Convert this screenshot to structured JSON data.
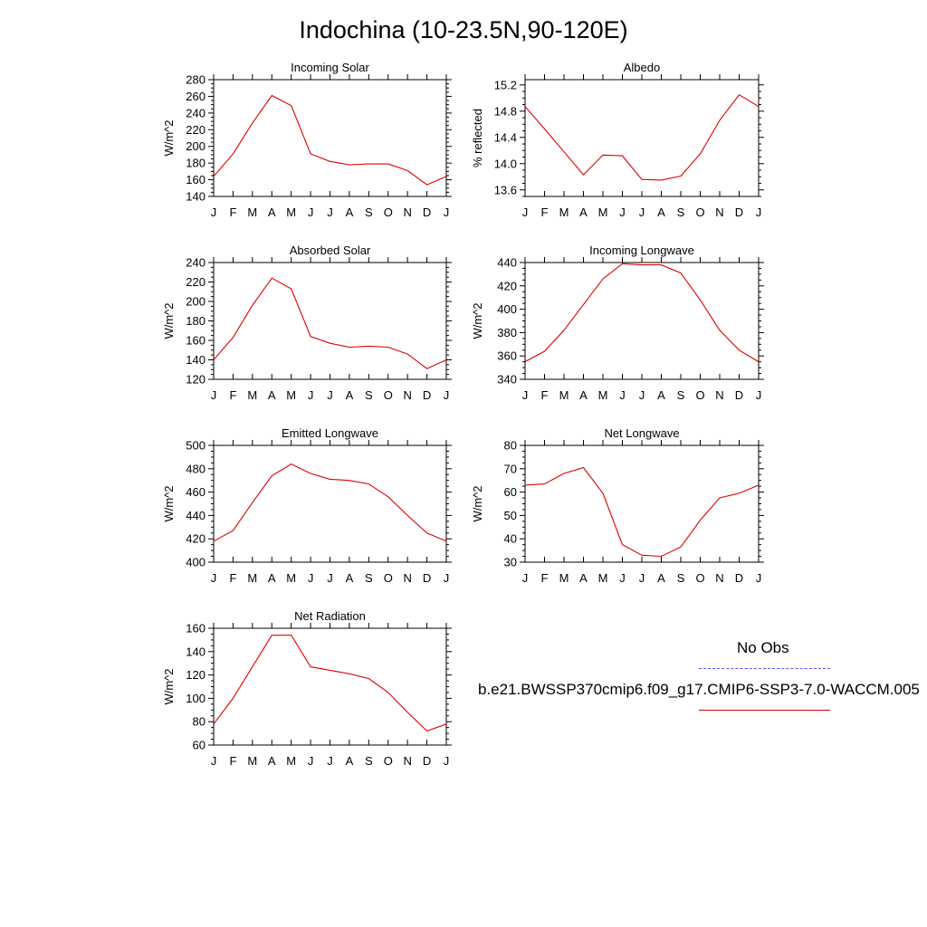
{
  "title": "Indochina (10-23.5N,90-120E)",
  "legend": {
    "obs_label": "No Obs",
    "obs_color": "#5555ee",
    "model_label": "b.e21.BWSSP370cmip6.f09_g17.CMIP6-SSP3-7.0-WACCM.005",
    "model_color": "#dd0000"
  },
  "chart_data": [
    {
      "type": "line",
      "title": "Incoming Solar",
      "ylabel": "W/m^2",
      "categories": [
        "J",
        "F",
        "M",
        "A",
        "M",
        "J",
        "J",
        "A",
        "S",
        "O",
        "N",
        "D",
        "J"
      ],
      "ylim": [
        140,
        280
      ],
      "yticks": [
        140,
        160,
        180,
        200,
        220,
        240,
        260,
        280
      ],
      "ytick_labels": [
        "140",
        "160",
        "180",
        "200",
        "220",
        "240",
        "260",
        "280"
      ],
      "values": [
        164,
        191,
        228,
        261,
        249,
        191,
        182,
        178,
        179,
        179,
        171,
        154,
        164
      ]
    },
    {
      "type": "line",
      "title": "Albedo",
      "ylabel": "% reflected",
      "categories": [
        "J",
        "F",
        "M",
        "A",
        "M",
        "J",
        "J",
        "A",
        "S",
        "O",
        "N",
        "D",
        "J"
      ],
      "ylim": [
        13.5,
        15.28
      ],
      "yticks": [
        13.6,
        14.0,
        14.4,
        14.8,
        15.2
      ],
      "ytick_labels": [
        "13.6",
        "14.0",
        "14.4",
        "14.8",
        "15.2"
      ],
      "values": [
        14.87,
        14.53,
        14.18,
        13.83,
        14.13,
        14.12,
        13.76,
        13.75,
        13.81,
        14.15,
        14.66,
        15.05,
        14.87
      ]
    },
    {
      "type": "line",
      "title": "Absorbed Solar",
      "ylabel": "W/m^2",
      "categories": [
        "J",
        "F",
        "M",
        "A",
        "M",
        "J",
        "J",
        "A",
        "S",
        "O",
        "N",
        "D",
        "J"
      ],
      "ylim": [
        120,
        240
      ],
      "yticks": [
        120,
        140,
        160,
        180,
        200,
        220,
        240
      ],
      "ytick_labels": [
        "120",
        "140",
        "160",
        "180",
        "200",
        "220",
        "240"
      ],
      "values": [
        140,
        163,
        196,
        224,
        213,
        164,
        157,
        153,
        154,
        153,
        146,
        131,
        140
      ]
    },
    {
      "type": "line",
      "title": "Incoming Longwave",
      "ylabel": "W/m^2",
      "categories": [
        "J",
        "F",
        "M",
        "A",
        "M",
        "J",
        "J",
        "A",
        "S",
        "O",
        "N",
        "D",
        "J"
      ],
      "ylim": [
        340,
        440
      ],
      "yticks": [
        340,
        360,
        380,
        400,
        420,
        440
      ],
      "ytick_labels": [
        "340",
        "360",
        "380",
        "400",
        "420",
        "440"
      ],
      "values": [
        355,
        364,
        382,
        404,
        426,
        439,
        438,
        438,
        431,
        408,
        382,
        365,
        355
      ]
    },
    {
      "type": "line",
      "title": "Emitted Longwave",
      "ylabel": "W/m^2",
      "categories": [
        "J",
        "F",
        "M",
        "A",
        "M",
        "J",
        "J",
        "A",
        "S",
        "O",
        "N",
        "D",
        "J"
      ],
      "ylim": [
        400,
        500
      ],
      "yticks": [
        400,
        420,
        440,
        460,
        480,
        500
      ],
      "ytick_labels": [
        "400",
        "420",
        "440",
        "460",
        "480",
        "500"
      ],
      "values": [
        418,
        427,
        451,
        474,
        484,
        476,
        471,
        470,
        467,
        456,
        440,
        425,
        418
      ]
    },
    {
      "type": "line",
      "title": "Net Longwave",
      "ylabel": "W/m^2",
      "categories": [
        "J",
        "F",
        "M",
        "A",
        "M",
        "J",
        "J",
        "A",
        "S",
        "O",
        "N",
        "D",
        "J"
      ],
      "ylim": [
        30,
        80
      ],
      "yticks": [
        30,
        40,
        50,
        60,
        70,
        80
      ],
      "ytick_labels": [
        "30",
        "40",
        "50",
        "60",
        "70",
        "80"
      ],
      "values": [
        63,
        63.5,
        68,
        70.5,
        59.5,
        37.5,
        33,
        32.5,
        36.5,
        48,
        57.5,
        59.5,
        63
      ]
    },
    {
      "type": "line",
      "title": "Net Radiation",
      "ylabel": "W/m^2",
      "categories": [
        "J",
        "F",
        "M",
        "A",
        "M",
        "J",
        "J",
        "A",
        "S",
        "O",
        "N",
        "D",
        "J"
      ],
      "ylim": [
        60,
        160
      ],
      "yticks": [
        60,
        80,
        100,
        120,
        140,
        160
      ],
      "ytick_labels": [
        "60",
        "80",
        "100",
        "120",
        "140",
        "160"
      ],
      "values": [
        78,
        100,
        127,
        154,
        154,
        127,
        124,
        121,
        117,
        105,
        88,
        72,
        78
      ]
    }
  ]
}
